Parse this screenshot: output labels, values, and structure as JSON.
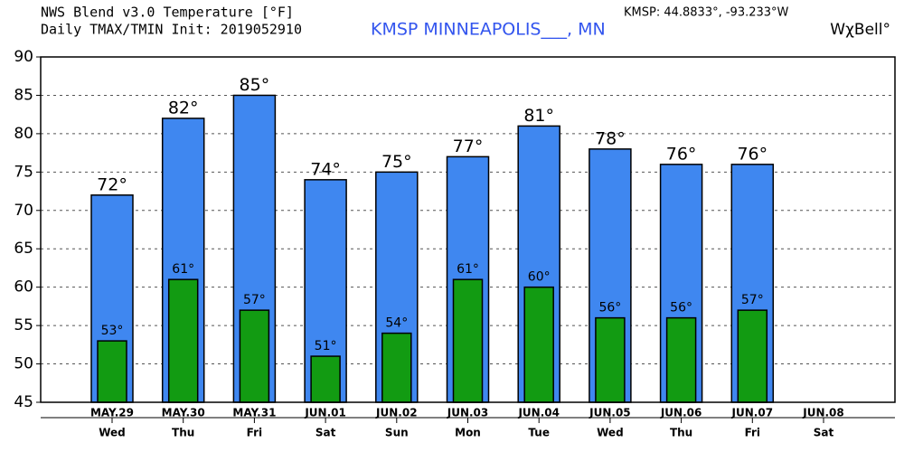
{
  "chart_data": {
    "type": "bar",
    "title": "NWS Blend v3.0 Temperature [°F]",
    "subtitle": "Daily TMAX/TMIN Init: 2019052910",
    "station": "KMSP MINNEAPOLIS___, MN",
    "location": "KMSP: 44.8833°, -93.233°W",
    "brand": "WχBell°",
    "categories": [
      "MAY.29",
      "MAY.30",
      "MAY.31",
      "JUN.01",
      "JUN.02",
      "JUN.03",
      "JUN.04",
      "JUN.05",
      "JUN.06",
      "JUN.07",
      "JUN.08"
    ],
    "weekdays": [
      "Wed",
      "Thu",
      "Fri",
      "Sat",
      "Sun",
      "Mon",
      "Tue",
      "Wed",
      "Thu",
      "Fri",
      "Sat"
    ],
    "series": [
      {
        "color": "#3f87f0",
        "values": [
          72,
          82,
          85,
          74,
          75,
          77,
          81,
          78,
          76,
          76,
          null
        ],
        "value_labels": [
          "72°",
          "82°",
          "85°",
          "74°",
          "75°",
          "77°",
          "81°",
          "78°",
          "76°",
          "76°",
          null
        ]
      },
      {
        "color": "#129b12",
        "values": [
          53,
          61,
          57,
          51,
          54,
          61,
          60,
          56,
          56,
          57,
          null
        ],
        "value_labels": [
          "53°",
          "61°",
          "57°",
          "51°",
          "54°",
          "61°",
          "60°",
          "56°",
          "56°",
          "57°",
          null
        ]
      }
    ],
    "ylim": [
      45,
      90
    ],
    "yticks": [
      45,
      50,
      55,
      60,
      65,
      70,
      75,
      80,
      85,
      90
    ],
    "grid": true
  }
}
